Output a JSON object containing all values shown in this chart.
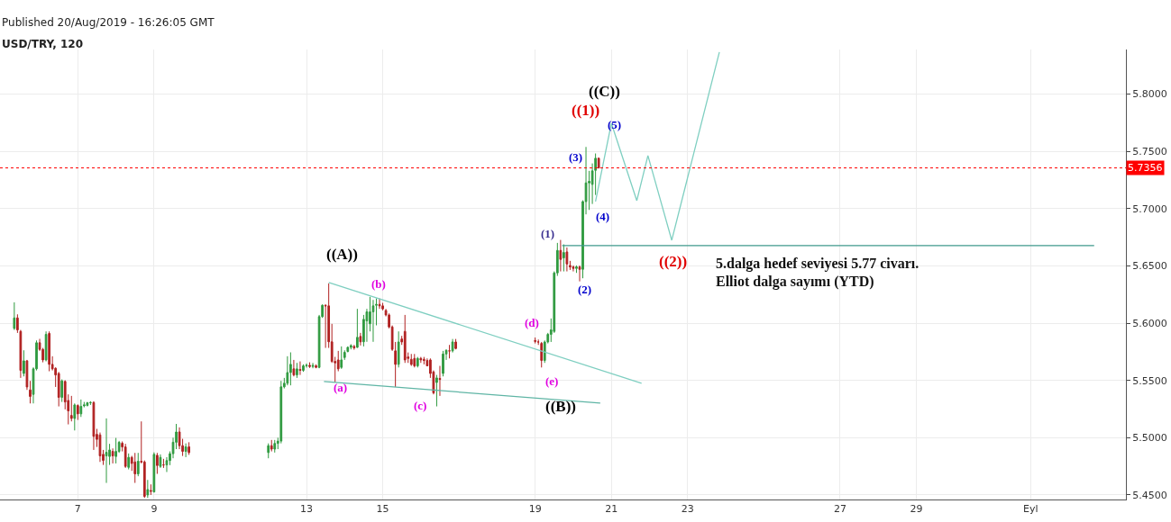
{
  "chart_data": {
    "type": "candlestick",
    "title": "USD/TRY, 120",
    "subtitle": "Published 20/Aug/2019 - 16:26:05 GMT",
    "xlim": [
      "2019-08-04T23:00",
      "2019-09-03T12:00"
    ],
    "ylim": [
      5.446,
      5.839
    ],
    "xticks": [
      {
        "value": "2019-08-07",
        "label": "7"
      },
      {
        "value": "2019-08-09",
        "label": "9"
      },
      {
        "value": "2019-08-13",
        "label": "13"
      },
      {
        "value": "2019-08-15",
        "label": "15"
      },
      {
        "value": "2019-08-19",
        "label": "19"
      },
      {
        "value": "2019-08-21",
        "label": "21"
      },
      {
        "value": "2019-08-23",
        "label": "23"
      },
      {
        "value": "2019-08-27",
        "label": "27"
      },
      {
        "value": "2019-08-29",
        "label": "29"
      },
      {
        "value": "2019-09-01",
        "label": "Eyl"
      }
    ],
    "yticks": [
      {
        "value": 5.45,
        "label": "5.4500"
      },
      {
        "value": 5.5,
        "label": "5.5000"
      },
      {
        "value": 5.55,
        "label": "5.5500"
      },
      {
        "value": 5.6,
        "label": "5.6000"
      },
      {
        "value": 5.65,
        "label": "5.6500"
      },
      {
        "value": 5.7,
        "label": "5.7000"
      },
      {
        "value": 5.75,
        "label": "5.7500"
      },
      {
        "value": 5.8,
        "label": "5.8000"
      }
    ],
    "grid": true,
    "series": [
      {
        "x": [
          "2019-08-05T08:00",
          "2019-08-05T10:00",
          "2019-08-05T12:00",
          "2019-08-05T14:00",
          "2019-08-05T16:00",
          "2019-08-05T18:00",
          "2019-08-05T20:00",
          "2019-08-05T22:00",
          "2019-08-06T00:00",
          "2019-08-06T02:00",
          "2019-08-06T04:00",
          "2019-08-06T06:00",
          "2019-08-06T08:00",
          "2019-08-06T10:00",
          "2019-08-06T12:00",
          "2019-08-06T14:00",
          "2019-08-06T16:00",
          "2019-08-06T18:00",
          "2019-08-06T20:00",
          "2019-08-06T22:00",
          "2019-08-07T00:00",
          "2019-08-07T02:00",
          "2019-08-07T04:00",
          "2019-08-07T06:00",
          "2019-08-07T08:00",
          "2019-08-07T10:00",
          "2019-08-07T12:00",
          "2019-08-07T14:00",
          "2019-08-07T16:00",
          "2019-08-07T18:00",
          "2019-08-07T20:00",
          "2019-08-07T22:00",
          "2019-08-08T00:00",
          "2019-08-08T02:00",
          "2019-08-08T04:00",
          "2019-08-08T06:00",
          "2019-08-08T08:00",
          "2019-08-08T10:00",
          "2019-08-08T12:00",
          "2019-08-08T14:00",
          "2019-08-08T16:00",
          "2019-08-08T18:00",
          "2019-08-08T20:00",
          "2019-08-08T22:00",
          "2019-08-09T00:00",
          "2019-08-09T02:00",
          "2019-08-09T04:00",
          "2019-08-09T06:00",
          "2019-08-09T08:00",
          "2019-08-09T10:00",
          "2019-08-09T12:00",
          "2019-08-09T14:00",
          "2019-08-09T16:00",
          "2019-08-09T18:00",
          "2019-08-09T20:00",
          "2019-08-09T22:00",
          "2019-08-12T00:00",
          "2019-08-12T02:00",
          "2019-08-12T04:00",
          "2019-08-12T06:00",
          "2019-08-12T08:00",
          "2019-08-12T10:00",
          "2019-08-12T12:00",
          "2019-08-12T14:00",
          "2019-08-12T16:00",
          "2019-08-12T18:00",
          "2019-08-12T20:00",
          "2019-08-12T22:00",
          "2019-08-13T00:00",
          "2019-08-13T02:00",
          "2019-08-13T04:00",
          "2019-08-13T06:00",
          "2019-08-13T08:00",
          "2019-08-13T10:00",
          "2019-08-13T12:00",
          "2019-08-13T14:00",
          "2019-08-13T16:00",
          "2019-08-13T18:00",
          "2019-08-13T20:00",
          "2019-08-13T22:00",
          "2019-08-14T00:00",
          "2019-08-14T02:00",
          "2019-08-14T04:00",
          "2019-08-14T06:00",
          "2019-08-14T08:00",
          "2019-08-14T10:00",
          "2019-08-14T12:00",
          "2019-08-14T14:00",
          "2019-08-14T16:00",
          "2019-08-14T18:00",
          "2019-08-14T20:00",
          "2019-08-14T22:00",
          "2019-08-15T00:00",
          "2019-08-15T02:00",
          "2019-08-15T04:00",
          "2019-08-15T06:00",
          "2019-08-15T08:00",
          "2019-08-15T10:00",
          "2019-08-15T12:00",
          "2019-08-15T14:00",
          "2019-08-15T16:00",
          "2019-08-15T18:00",
          "2019-08-15T20:00",
          "2019-08-15T22:00",
          "2019-08-16T00:00",
          "2019-08-16T02:00",
          "2019-08-16T04:00",
          "2019-08-16T06:00",
          "2019-08-16T08:00",
          "2019-08-16T10:00",
          "2019-08-16T12:00",
          "2019-08-16T14:00",
          "2019-08-16T16:00",
          "2019-08-16T18:00",
          "2019-08-16T20:00",
          "2019-08-16T22:00",
          "2019-08-19T00:00",
          "2019-08-19T02:00",
          "2019-08-19T04:00",
          "2019-08-19T06:00",
          "2019-08-19T08:00",
          "2019-08-19T10:00",
          "2019-08-19T12:00",
          "2019-08-19T14:00",
          "2019-08-19T16:00",
          "2019-08-19T18:00",
          "2019-08-19T20:00",
          "2019-08-19T22:00",
          "2019-08-20T00:00",
          "2019-08-20T02:00",
          "2019-08-20T04:00",
          "2019-08-20T06:00",
          "2019-08-20T08:00",
          "2019-08-20T10:00",
          "2019-08-20T12:00",
          "2019-08-20T14:00",
          "2019-08-20T16:00"
        ],
        "ohlc": [
          [
            5.5954,
            5.6182,
            5.5941,
            5.6046
          ],
          [
            5.6046,
            5.6077,
            5.5915,
            5.5941
          ],
          [
            5.5928,
            5.5941,
            5.5522,
            5.5587
          ],
          [
            5.5561,
            5.5763,
            5.5535,
            5.5671
          ],
          [
            5.5671,
            5.5679,
            5.5417,
            5.5443
          ],
          [
            5.5417,
            5.5496,
            5.5299,
            5.536
          ],
          [
            5.5378,
            5.5614,
            5.5299,
            5.5601
          ],
          [
            5.5601,
            5.5849,
            5.5587,
            5.5829
          ],
          [
            5.5829,
            5.5863,
            5.5758,
            5.5771
          ],
          [
            5.5771,
            5.5784,
            5.5658,
            5.5679
          ],
          [
            5.5679,
            5.5928,
            5.5666,
            5.5902
          ],
          [
            5.591,
            5.5928,
            5.558,
            5.564
          ],
          [
            5.564,
            5.5711,
            5.5587,
            5.5601
          ],
          [
            5.5606,
            5.5614,
            5.5443,
            5.5548
          ],
          [
            5.5561,
            5.5574,
            5.5273,
            5.5352
          ],
          [
            5.5352,
            5.5509,
            5.5312,
            5.5496
          ],
          [
            5.5491,
            5.5501,
            5.5247,
            5.5312
          ],
          [
            5.5325,
            5.5378,
            5.5116,
            5.5234
          ],
          [
            5.5194,
            5.5365,
            5.5142,
            5.5168
          ],
          [
            5.5168,
            5.5299,
            5.5063,
            5.5286
          ],
          [
            5.5281,
            5.5291,
            5.5155,
            5.5208
          ],
          [
            5.5208,
            5.5333,
            5.5181,
            5.5273
          ],
          [
            5.5278,
            5.5312,
            5.5265,
            5.5286
          ],
          [
            5.5281,
            5.5312,
            5.5273,
            5.5305
          ],
          [
            5.5305,
            5.5318,
            5.5286,
            5.5307
          ],
          [
            5.5307,
            5.5318,
            5.4893,
            5.5011
          ],
          [
            5.5029,
            5.5077,
            5.4919,
            5.4985
          ],
          [
            5.5024,
            5.5045,
            5.4788,
            5.4841
          ],
          [
            5.4854,
            5.4893,
            5.4762,
            5.4801
          ],
          [
            5.4841,
            5.5168,
            5.4605,
            5.4872
          ],
          [
            5.4836,
            5.4946,
            5.4762,
            5.4893
          ],
          [
            5.488,
            5.4906,
            5.4775,
            5.4841
          ],
          [
            5.4836,
            5.4998,
            5.4775,
            5.488
          ],
          [
            5.488,
            5.4972,
            5.4867,
            5.4959
          ],
          [
            5.4951,
            5.4967,
            5.488,
            5.4919
          ],
          [
            5.4919,
            5.4946,
            5.4736,
            5.4749
          ],
          [
            5.4741,
            5.4862,
            5.4723,
            5.4828
          ],
          [
            5.4828,
            5.4841,
            5.471,
            5.4775
          ],
          [
            5.4788,
            5.4867,
            5.4605,
            5.4684
          ],
          [
            5.4684,
            5.4867,
            5.4663,
            5.4794
          ],
          [
            5.4794,
            5.5142,
            5.4775,
            5.4788
          ],
          [
            5.4788,
            5.4801,
            5.4474,
            5.4487
          ],
          [
            5.45,
            5.4631,
            5.4474,
            5.4547
          ],
          [
            5.4539,
            5.4592,
            5.45,
            5.4532
          ],
          [
            5.4526,
            5.4872,
            5.4521,
            5.4854
          ],
          [
            5.4846,
            5.4867,
            5.4684,
            5.4757
          ],
          [
            5.4749,
            5.4854,
            5.4736,
            5.4828
          ],
          [
            5.4762,
            5.4815,
            5.4736,
            5.4762
          ],
          [
            5.4762,
            5.483,
            5.47,
            5.48
          ],
          [
            5.48,
            5.488,
            5.476,
            5.486
          ],
          [
            5.486,
            5.5,
            5.482,
            5.496
          ],
          [
            5.496,
            5.512,
            5.49,
            5.505
          ],
          [
            5.505,
            5.509,
            5.49,
            5.493
          ],
          [
            5.493,
            5.499,
            5.484,
            5.488
          ],
          [
            5.488,
            5.495,
            5.483,
            5.492
          ],
          [
            5.492,
            5.496,
            5.485,
            5.487
          ],
          [
            5.487,
            5.495,
            5.482,
            5.493
          ],
          [
            5.493,
            5.498,
            5.488,
            5.49
          ],
          [
            5.49,
            5.498,
            5.487,
            5.495
          ],
          [
            5.495,
            5.5,
            5.49,
            5.497
          ],
          [
            5.497,
            5.5496,
            5.495,
            5.5444
          ],
          [
            5.5444,
            5.5522,
            5.543,
            5.5475
          ],
          [
            5.5475,
            5.5711,
            5.5457,
            5.5569
          ],
          [
            5.5569,
            5.5745,
            5.5457,
            5.564
          ],
          [
            5.5601,
            5.5679,
            5.5535,
            5.5548
          ],
          [
            5.5548,
            5.5653,
            5.5522,
            5.5601
          ],
          [
            5.5596,
            5.5666,
            5.5548,
            5.5588
          ],
          [
            5.5588,
            5.564,
            5.5575,
            5.5627
          ],
          [
            5.5627,
            5.5648,
            5.5611,
            5.5632
          ],
          [
            5.5632,
            5.5658,
            5.5609,
            5.5622
          ],
          [
            5.5622,
            5.5653,
            5.5606,
            5.563
          ],
          [
            5.5627,
            5.564,
            5.5606,
            5.5614
          ],
          [
            5.5614,
            5.6072,
            5.5606,
            5.6057
          ],
          [
            5.6057,
            5.6164,
            5.6046,
            5.6156
          ],
          [
            5.6156,
            5.6164,
            5.5784,
            5.6151
          ],
          [
            5.6151,
            5.6347,
            5.5784,
            5.5837
          ],
          [
            5.5837,
            5.5994,
            5.5653,
            5.5666
          ],
          [
            5.5666,
            5.5706,
            5.5483,
            5.5653
          ],
          [
            5.5679,
            5.5758,
            5.558,
            5.5601
          ],
          [
            5.5614,
            5.5797,
            5.5601,
            5.5679
          ],
          [
            5.57,
            5.5763,
            5.5679,
            5.5745
          ],
          [
            5.5753,
            5.5797,
            5.5745,
            5.5789
          ],
          [
            5.5789,
            5.5816,
            5.5771,
            5.5805
          ],
          [
            5.5797,
            5.581,
            5.5768,
            5.5784
          ],
          [
            5.5789,
            5.6125,
            5.5784,
            5.5876
          ],
          [
            5.5884,
            5.5915,
            5.5805,
            5.5837
          ],
          [
            5.5837,
            5.6072,
            5.5797,
            5.6033
          ],
          [
            5.602,
            5.6125,
            5.5837,
            5.6099
          ],
          [
            5.5994,
            5.623,
            5.5928,
            5.6099
          ],
          [
            5.6099,
            5.6203,
            5.5837,
            5.6151
          ],
          [
            5.6156,
            5.6216,
            5.5981,
            5.6164
          ],
          [
            5.6164,
            5.6216,
            5.6125,
            5.6151
          ],
          [
            5.6151,
            5.6177,
            5.6112,
            5.6125
          ],
          [
            5.6111,
            5.6124,
            5.6059,
            5.6072
          ],
          [
            5.6072,
            5.6085,
            5.5954,
            5.5967
          ],
          [
            5.5967,
            5.598,
            5.5758,
            5.5771
          ],
          [
            5.5758,
            5.5836,
            5.5443,
            5.564
          ],
          [
            5.564,
            5.5928,
            5.5613,
            5.5836
          ],
          [
            5.5862,
            5.5889,
            5.581,
            5.5836
          ],
          [
            5.5928,
            5.6072,
            5.5653,
            5.5679
          ],
          [
            5.5705,
            5.5744,
            5.5653,
            5.5692
          ],
          [
            5.5684,
            5.5731,
            5.5627,
            5.564
          ],
          [
            5.5692,
            5.5731,
            5.5613,
            5.5627
          ],
          [
            5.5627,
            5.5705,
            5.5613,
            5.5692
          ],
          [
            5.5692,
            5.5705,
            5.5653,
            5.5679
          ],
          [
            5.5684,
            5.5705,
            5.564,
            5.5674
          ],
          [
            5.5674,
            5.5692,
            5.5627,
            5.5627
          ],
          [
            5.5679,
            5.5692,
            5.5522,
            5.5561
          ],
          [
            5.5574,
            5.5587,
            5.5378,
            5.5391
          ],
          [
            5.5482,
            5.5548,
            5.5273,
            5.5522
          ],
          [
            5.5517,
            5.5627,
            5.5365,
            5.5509
          ],
          [
            5.5561,
            5.5758,
            5.5535,
            5.5731
          ],
          [
            5.5731,
            5.5771,
            5.5679,
            5.5763
          ],
          [
            5.5758,
            5.581,
            5.5692,
            5.5758
          ],
          [
            5.5758,
            5.5862,
            5.5744,
            5.5836
          ],
          [
            5.5836,
            5.5862,
            5.5771,
            5.5779
          ],
          [
            5.5849,
            5.5875,
            5.5823,
            5.5841
          ],
          [
            5.5836,
            5.5857,
            5.581,
            5.5836
          ],
          [
            5.5823,
            5.5836,
            5.5613,
            5.5674
          ],
          [
            5.5674,
            5.5849,
            5.5653,
            5.5836
          ],
          [
            5.5836,
            5.5915,
            5.5823,
            5.5902
          ],
          [
            5.5902,
            5.6041,
            5.5836,
            5.5941
          ],
          [
            5.5928,
            5.6452,
            5.5915,
            5.6439
          ],
          [
            5.6439,
            5.6701,
            5.6413,
            5.6635
          ],
          [
            5.6635,
            5.6727,
            5.6452,
            5.6557
          ],
          [
            5.657,
            5.6688,
            5.6452,
            5.6617
          ],
          [
            5.6622,
            5.6661,
            5.6452,
            5.6517
          ],
          [
            5.6504,
            5.6544,
            5.6465,
            5.6491
          ],
          [
            5.6491,
            5.6504,
            5.6452,
            5.6478
          ],
          [
            5.6478,
            5.6504,
            5.6439,
            5.6491
          ],
          [
            5.6491,
            5.6504,
            5.6365,
            5.647
          ],
          [
            5.647,
            5.7073,
            5.6392,
            5.7062
          ],
          [
            5.7062,
            5.7539,
            5.695,
            5.7225
          ],
          [
            5.7225,
            5.733,
            5.6989,
            5.7238
          ],
          [
            5.7212,
            5.7395,
            5.7041,
            5.733
          ],
          [
            5.7335,
            5.7482,
            5.712,
            5.744
          ],
          [
            5.744,
            5.7447,
            5.7351,
            5.7356
          ]
        ]
      },
      {
        "type": "line",
        "color": "#7fcfc1",
        "x": [
          "2019-08-20T14:00",
          "2019-08-21T00:00",
          "2019-08-21T16:00",
          "2019-08-21T23:00",
          "2019-08-22T14:00",
          "2019-08-23T20:00"
        ],
        "values": [
          5.7063,
          5.7746,
          5.707,
          5.7463,
          5.6724,
          5.8367
        ]
      },
      {
        "type": "line",
        "color": "#3f9a8c",
        "x": [
          "2019-08-19T17:00",
          "2019-09-02T16:00"
        ],
        "values": [
          5.6677,
          5.6677
        ]
      },
      {
        "type": "line",
        "color": "#7fcfc1",
        "x": [
          "2019-08-13T14:00",
          "2019-08-21T19:00"
        ],
        "values": [
          5.6355,
          5.5475
        ]
      },
      {
        "type": "line",
        "color": "#5fb5a5",
        "x": [
          "2019-08-13T11:00",
          "2019-08-20T17:00"
        ],
        "values": [
          5.549,
          5.5302
        ]
      }
    ],
    "ref_lines": [
      {
        "axis": "y",
        "value": 5.7356,
        "label": "5.7356",
        "color": "#ff0000",
        "line_style": "dotted"
      }
    ],
    "annotations": [
      "((C))",
      "((1))",
      "(5)",
      "(3)",
      "(4)",
      "(1)",
      "(2)",
      "((2))",
      "((A))",
      "(b)",
      "(d)",
      "(e)",
      "(a)",
      "(c)",
      "((B))",
      "5.dalga hedef seviyesi 5.77 civarı.",
      "Elliot dalga sayımı (YTD)"
    ]
  }
}
